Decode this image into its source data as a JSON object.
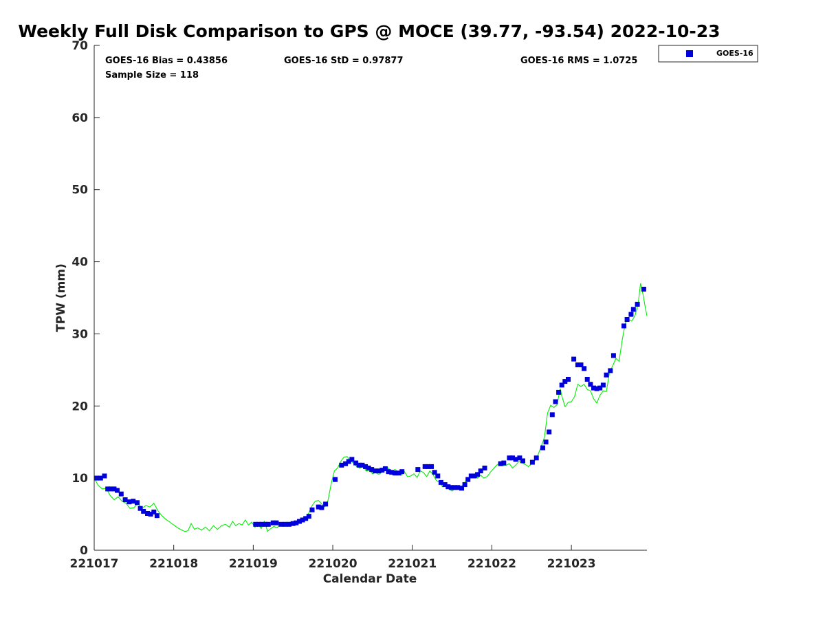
{
  "chart_data": {
    "type": "scatter",
    "title": "Weekly Full Disk Comparison to GPS @ MOCE (39.77, -93.54) 2022-10-23",
    "xlabel": "Calendar Date",
    "ylabel": "TPW (mm)",
    "xlim": [
      0,
      6.95
    ],
    "ylim": [
      0,
      70
    ],
    "x_ticks": [
      0,
      1,
      2,
      3,
      4,
      5,
      6
    ],
    "x_tick_labels": [
      "221017",
      "221018",
      "221019",
      "221020",
      "221021",
      "221022",
      "221023"
    ],
    "y_ticks": [
      0,
      10,
      20,
      30,
      40,
      50,
      60,
      70
    ],
    "y_tick_labels": [
      "0",
      "10",
      "20",
      "30",
      "40",
      "50",
      "60",
      "70"
    ],
    "stats": {
      "bias": "GOES-16 Bias = 0.43856",
      "std": "GOES-16 StD = 0.97877",
      "rms": "GOES-16 RMS = 1.0725",
      "sample": "Sample Size = 118"
    },
    "legend": {
      "position": "top-right-outside",
      "label": "GOES-16"
    },
    "series": [
      {
        "name": "GOES-16",
        "kind": "markers",
        "color": "#0000dd",
        "points": [
          [
            0.03,
            10.0
          ],
          [
            0.08,
            10.0
          ],
          [
            0.13,
            10.3
          ],
          [
            0.17,
            8.5
          ],
          [
            0.21,
            8.5
          ],
          [
            0.25,
            8.5
          ],
          [
            0.29,
            8.3
          ],
          [
            0.34,
            7.8
          ],
          [
            0.39,
            7.0
          ],
          [
            0.44,
            6.7
          ],
          [
            0.49,
            6.8
          ],
          [
            0.54,
            6.6
          ],
          [
            0.58,
            5.8
          ],
          [
            0.62,
            5.4
          ],
          [
            0.67,
            5.1
          ],
          [
            0.71,
            5.0
          ],
          [
            0.75,
            5.3
          ],
          [
            0.79,
            4.8
          ],
          [
            2.03,
            3.6
          ],
          [
            2.07,
            3.6
          ],
          [
            2.11,
            3.6
          ],
          [
            2.15,
            3.6
          ],
          [
            2.19,
            3.6
          ],
          [
            2.25,
            3.8
          ],
          [
            2.29,
            3.8
          ],
          [
            2.35,
            3.6
          ],
          [
            2.4,
            3.6
          ],
          [
            2.45,
            3.6
          ],
          [
            2.5,
            3.7
          ],
          [
            2.54,
            3.8
          ],
          [
            2.58,
            4.0
          ],
          [
            2.62,
            4.2
          ],
          [
            2.66,
            4.4
          ],
          [
            2.7,
            4.7
          ],
          [
            2.74,
            5.6
          ],
          [
            2.82,
            6.0
          ],
          [
            2.86,
            5.9
          ],
          [
            2.91,
            6.4
          ],
          [
            3.03,
            9.8
          ],
          [
            3.11,
            11.8
          ],
          [
            3.16,
            12.0
          ],
          [
            3.2,
            12.3
          ],
          [
            3.24,
            12.6
          ],
          [
            3.29,
            12.1
          ],
          [
            3.33,
            11.8
          ],
          [
            3.37,
            11.8
          ],
          [
            3.41,
            11.6
          ],
          [
            3.45,
            11.4
          ],
          [
            3.49,
            11.2
          ],
          [
            3.53,
            11.0
          ],
          [
            3.58,
            11.0
          ],
          [
            3.62,
            11.1
          ],
          [
            3.66,
            11.3
          ],
          [
            3.7,
            10.9
          ],
          [
            3.74,
            10.8
          ],
          [
            3.78,
            10.7
          ],
          [
            3.83,
            10.7
          ],
          [
            3.87,
            10.9
          ],
          [
            4.07,
            11.2
          ],
          [
            4.16,
            11.6
          ],
          [
            4.2,
            11.6
          ],
          [
            4.24,
            11.6
          ],
          [
            4.28,
            10.8
          ],
          [
            4.32,
            10.3
          ],
          [
            4.36,
            9.4
          ],
          [
            4.41,
            9.1
          ],
          [
            4.45,
            8.8
          ],
          [
            4.49,
            8.7
          ],
          [
            4.53,
            8.7
          ],
          [
            4.57,
            8.7
          ],
          [
            4.62,
            8.6
          ],
          [
            4.66,
            9.1
          ],
          [
            4.7,
            9.8
          ],
          [
            4.74,
            10.3
          ],
          [
            4.78,
            10.3
          ],
          [
            4.82,
            10.5
          ],
          [
            4.86,
            11.0
          ],
          [
            4.91,
            11.4
          ],
          [
            5.11,
            12.0
          ],
          [
            5.15,
            12.1
          ],
          [
            5.22,
            12.8
          ],
          [
            5.26,
            12.8
          ],
          [
            5.3,
            12.6
          ],
          [
            5.35,
            12.8
          ],
          [
            5.39,
            12.4
          ],
          [
            5.51,
            12.2
          ],
          [
            5.56,
            12.8
          ],
          [
            5.64,
            14.2
          ],
          [
            5.68,
            15.0
          ],
          [
            5.72,
            16.4
          ],
          [
            5.76,
            18.8
          ],
          [
            5.8,
            20.6
          ],
          [
            5.84,
            21.9
          ],
          [
            5.88,
            22.9
          ],
          [
            5.92,
            23.4
          ],
          [
            5.96,
            23.7
          ],
          [
            6.03,
            26.5
          ],
          [
            6.08,
            25.7
          ],
          [
            6.12,
            25.7
          ],
          [
            6.16,
            25.2
          ],
          [
            6.2,
            23.7
          ],
          [
            6.24,
            23.0
          ],
          [
            6.28,
            22.5
          ],
          [
            6.32,
            22.4
          ],
          [
            6.36,
            22.5
          ],
          [
            6.4,
            22.9
          ],
          [
            6.44,
            24.3
          ],
          [
            6.49,
            24.9
          ],
          [
            6.53,
            27.0
          ],
          [
            6.66,
            31.1
          ],
          [
            6.7,
            32.0
          ],
          [
            6.75,
            32.7
          ],
          [
            6.78,
            33.4
          ],
          [
            6.83,
            34.1
          ],
          [
            6.91,
            36.2
          ]
        ]
      },
      {
        "name": "GPS",
        "kind": "line",
        "color": "#00ee00",
        "points": [
          [
            0.0,
            10.0
          ],
          [
            0.05,
            9.0
          ],
          [
            0.1,
            8.5
          ],
          [
            0.15,
            8.6
          ],
          [
            0.2,
            7.6
          ],
          [
            0.25,
            7.0
          ],
          [
            0.3,
            7.4
          ],
          [
            0.35,
            6.8
          ],
          [
            0.4,
            6.5
          ],
          [
            0.45,
            5.8
          ],
          [
            0.5,
            5.9
          ],
          [
            0.55,
            6.5
          ],
          [
            0.6,
            5.8
          ],
          [
            0.65,
            6.2
          ],
          [
            0.7,
            6.0
          ],
          [
            0.75,
            6.5
          ],
          [
            0.8,
            5.5
          ],
          [
            0.85,
            4.8
          ],
          [
            0.9,
            4.3
          ],
          [
            0.95,
            3.9
          ],
          [
            1.0,
            3.5
          ],
          [
            1.05,
            3.1
          ],
          [
            1.1,
            2.8
          ],
          [
            1.14,
            2.6
          ],
          [
            1.18,
            2.7
          ],
          [
            1.22,
            3.7
          ],
          [
            1.26,
            2.9
          ],
          [
            1.3,
            3.1
          ],
          [
            1.35,
            2.8
          ],
          [
            1.4,
            3.2
          ],
          [
            1.45,
            2.7
          ],
          [
            1.5,
            3.4
          ],
          [
            1.55,
            2.9
          ],
          [
            1.6,
            3.4
          ],
          [
            1.65,
            3.6
          ],
          [
            1.7,
            3.2
          ],
          [
            1.74,
            4.0
          ],
          [
            1.78,
            3.4
          ],
          [
            1.82,
            3.7
          ],
          [
            1.86,
            3.5
          ],
          [
            1.9,
            4.2
          ],
          [
            1.94,
            3.5
          ],
          [
            1.98,
            3.9
          ],
          [
            2.02,
            3.2
          ],
          [
            2.06,
            3.6
          ],
          [
            2.1,
            3.0
          ],
          [
            2.14,
            4.0
          ],
          [
            2.18,
            2.6
          ],
          [
            2.22,
            3.0
          ],
          [
            2.26,
            3.3
          ],
          [
            2.3,
            3.1
          ],
          [
            2.35,
            3.8
          ],
          [
            2.4,
            3.4
          ],
          [
            2.45,
            3.9
          ],
          [
            2.5,
            3.7
          ],
          [
            2.55,
            4.0
          ],
          [
            2.6,
            4.3
          ],
          [
            2.65,
            4.4
          ],
          [
            2.7,
            5.2
          ],
          [
            2.74,
            6.2
          ],
          [
            2.78,
            6.8
          ],
          [
            2.82,
            6.9
          ],
          [
            2.86,
            6.4
          ],
          [
            2.9,
            6.0
          ],
          [
            2.94,
            6.9
          ],
          [
            2.98,
            9.2
          ],
          [
            3.02,
            11.0
          ],
          [
            3.06,
            11.4
          ],
          [
            3.1,
            12.3
          ],
          [
            3.14,
            12.9
          ],
          [
            3.18,
            13.0
          ],
          [
            3.22,
            12.4
          ],
          [
            3.26,
            12.1
          ],
          [
            3.3,
            11.6
          ],
          [
            3.34,
            11.4
          ],
          [
            3.38,
            11.7
          ],
          [
            3.42,
            11.0
          ],
          [
            3.46,
            11.1
          ],
          [
            3.5,
            10.6
          ],
          [
            3.54,
            10.8
          ],
          [
            3.58,
            10.5
          ],
          [
            3.62,
            10.9
          ],
          [
            3.66,
            11.5
          ],
          [
            3.7,
            11.4
          ],
          [
            3.74,
            10.8
          ],
          [
            3.78,
            11.2
          ],
          [
            3.82,
            10.9
          ],
          [
            3.86,
            10.4
          ],
          [
            3.9,
            10.9
          ],
          [
            3.94,
            10.2
          ],
          [
            3.98,
            10.3
          ],
          [
            4.02,
            10.6
          ],
          [
            4.06,
            10.1
          ],
          [
            4.1,
            11.0
          ],
          [
            4.14,
            10.8
          ],
          [
            4.18,
            10.2
          ],
          [
            4.22,
            11.0
          ],
          [
            4.26,
            10.5
          ],
          [
            4.3,
            9.7
          ],
          [
            4.34,
            9.4
          ],
          [
            4.38,
            8.8
          ],
          [
            4.42,
            8.9
          ],
          [
            4.46,
            8.5
          ],
          [
            4.5,
            8.2
          ],
          [
            4.54,
            8.6
          ],
          [
            4.58,
            8.5
          ],
          [
            4.62,
            8.8
          ],
          [
            4.66,
            9.4
          ],
          [
            4.7,
            9.8
          ],
          [
            4.74,
            10.1
          ],
          [
            4.78,
            10.6
          ],
          [
            4.82,
            10.0
          ],
          [
            4.86,
            10.4
          ],
          [
            4.9,
            10.0
          ],
          [
            4.94,
            10.2
          ],
          [
            4.98,
            10.8
          ],
          [
            5.02,
            11.3
          ],
          [
            5.06,
            11.8
          ],
          [
            5.1,
            12.1
          ],
          [
            5.14,
            11.7
          ],
          [
            5.18,
            11.8
          ],
          [
            5.22,
            12.0
          ],
          [
            5.26,
            11.4
          ],
          [
            5.3,
            11.8
          ],
          [
            5.34,
            12.3
          ],
          [
            5.38,
            12.1
          ],
          [
            5.42,
            11.9
          ],
          [
            5.46,
            11.6
          ],
          [
            5.5,
            12.0
          ],
          [
            5.54,
            12.4
          ],
          [
            5.58,
            13.2
          ],
          [
            5.62,
            14.4
          ],
          [
            5.66,
            15.6
          ],
          [
            5.7,
            19.0
          ],
          [
            5.74,
            20.1
          ],
          [
            5.78,
            19.8
          ],
          [
            5.82,
            20.2
          ],
          [
            5.86,
            22.4
          ],
          [
            5.88,
            21.4
          ],
          [
            5.92,
            19.9
          ],
          [
            5.96,
            20.5
          ],
          [
            6.0,
            20.6
          ],
          [
            6.04,
            21.3
          ],
          [
            6.08,
            23.0
          ],
          [
            6.12,
            22.7
          ],
          [
            6.16,
            23.0
          ],
          [
            6.2,
            22.3
          ],
          [
            6.24,
            22.1
          ],
          [
            6.28,
            21.0
          ],
          [
            6.32,
            20.4
          ],
          [
            6.36,
            21.5
          ],
          [
            6.4,
            22.1
          ],
          [
            6.44,
            22.0
          ],
          [
            6.48,
            24.7
          ],
          [
            6.52,
            25.6
          ],
          [
            6.56,
            26.6
          ],
          [
            6.6,
            26.2
          ],
          [
            6.64,
            29.2
          ],
          [
            6.68,
            31.6
          ],
          [
            6.72,
            32.0
          ],
          [
            6.76,
            31.8
          ],
          [
            6.8,
            32.5
          ],
          [
            6.84,
            34.2
          ],
          [
            6.87,
            37.0
          ],
          [
            6.9,
            35.5
          ],
          [
            6.93,
            33.6
          ],
          [
            6.95,
            32.5
          ]
        ]
      }
    ]
  }
}
